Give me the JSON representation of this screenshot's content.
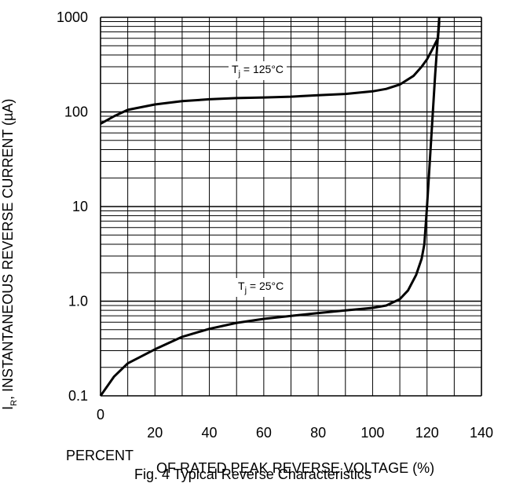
{
  "chart_data": {
    "type": "line",
    "title": "Fig. 4 Typical Reverse Characteristics",
    "xlabel": "PERCENT OF RATED PEAK REVERSE VOLTAGE (%)",
    "xlabel_line1": "PERCENT",
    "xlabel_line2": "OF RATED PEAK REVERSE VOLTAGE (%)",
    "ylabel": "I",
    "ylabel_sub": "R",
    "ylabel_rest": ", INSTANTANEOUS REVERSE CURRENT (µA)",
    "xlim": [
      0,
      140
    ],
    "ylim": [
      0.1,
      1000
    ],
    "yscale": "log",
    "grid": true,
    "x_ticks": [
      "0",
      "20",
      "40",
      "60",
      "80",
      "100",
      "120",
      "140"
    ],
    "y_ticks": [
      "0.1",
      "1.0",
      "10",
      "100",
      "1000"
    ],
    "series": [
      {
        "name": "Tj = 125°C",
        "label_main": "T",
        "label_sub": "j",
        "label_rest": " = 125°C",
        "points": [
          [
            0,
            75
          ],
          [
            5,
            90
          ],
          [
            10,
            105
          ],
          [
            20,
            120
          ],
          [
            30,
            130
          ],
          [
            40,
            136
          ],
          [
            50,
            140
          ],
          [
            60,
            142
          ],
          [
            70,
            145
          ],
          [
            80,
            150
          ],
          [
            90,
            155
          ],
          [
            100,
            165
          ],
          [
            105,
            175
          ],
          [
            110,
            195
          ],
          [
            115,
            240
          ],
          [
            118,
            300
          ],
          [
            120,
            360
          ],
          [
            122,
            460
          ],
          [
            124,
            600
          ],
          [
            124.5,
            900
          ]
        ]
      },
      {
        "name": "Tj = 25°C",
        "label_main": "T",
        "label_sub": "j",
        "label_rest": " = 25°C",
        "points": [
          [
            0,
            0.1
          ],
          [
            5,
            0.16
          ],
          [
            10,
            0.22
          ],
          [
            20,
            0.31
          ],
          [
            30,
            0.42
          ],
          [
            40,
            0.51
          ],
          [
            50,
            0.59
          ],
          [
            60,
            0.65
          ],
          [
            70,
            0.7
          ],
          [
            80,
            0.75
          ],
          [
            90,
            0.8
          ],
          [
            100,
            0.85
          ],
          [
            105,
            0.9
          ],
          [
            110,
            1.05
          ],
          [
            113,
            1.3
          ],
          [
            116,
            1.9
          ],
          [
            118,
            2.8
          ],
          [
            119,
            4
          ],
          [
            120,
            10
          ],
          [
            121.5,
            50
          ],
          [
            123,
            250
          ],
          [
            124.5,
            1000
          ]
        ]
      }
    ]
  }
}
